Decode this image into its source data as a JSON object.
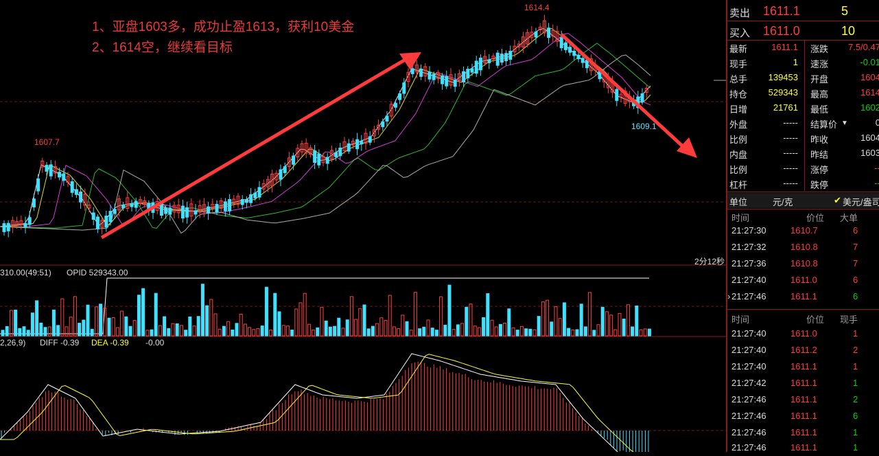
{
  "annotations": {
    "line1": "1、亚盘1603多，成功止盈1613，获利10美金",
    "line2": "2、1614空，继续看目标"
  },
  "chart": {
    "high_label": "1614.4",
    "left_high_label": "1607.7",
    "low_label": "1609.1",
    "countdown": "2分12秒",
    "volume_header": "310.00(49:51)",
    "opid_label": "OPID 529343.00",
    "macd_header": "2,26,9)",
    "diff_label": "DIFF -0.39",
    "dea_label": "DEA -0.39",
    "macd_value": "-0.00"
  },
  "quote": {
    "sell_label": "卖出",
    "sell_price": "1611.1",
    "sell_qty": "5",
    "buy_label": "买入",
    "buy_price": "1611.0",
    "buy_qty": "10"
  },
  "stats": [
    {
      "l1": "最新",
      "v1": "1611.1",
      "l2": "涨跌",
      "v2": "7.5/0.47"
    },
    {
      "l1": "现手",
      "v1": "1",
      "l2": "速涨",
      "v2": "-0.01"
    },
    {
      "l1": "总手",
      "v1": "139453",
      "l2": "开盘",
      "v2": "1604"
    },
    {
      "l1": "持仓",
      "v1": "529343",
      "l2": "最高",
      "v2": "1614"
    },
    {
      "l1": "日增",
      "v1": "21761",
      "l2": "最低",
      "v2": "1602"
    },
    {
      "l1": "外盘",
      "v1": "-----",
      "l2": "结算价",
      "v2": "0"
    },
    {
      "l1": "比例",
      "v1": "-----",
      "l2": "昨收",
      "v2": "1604"
    },
    {
      "l1": "内盘",
      "v1": "-----",
      "l2": "昨结",
      "v2": "1603"
    },
    {
      "l1": "比例",
      "v1": "-----",
      "l2": "涨停",
      "v2": "--"
    },
    {
      "l1": "杠杆",
      "v1": "-----",
      "l2": "跌停",
      "v2": "--"
    }
  ],
  "unit": {
    "label": "单位",
    "value": "元/克",
    "option": "美元/盎司"
  },
  "big_orders": {
    "headers": [
      "时间",
      "价位",
      "大单"
    ],
    "rows": [
      {
        "time": "21:27:30",
        "price": "1610.7",
        "qty": "6"
      },
      {
        "time": "21:27:32",
        "price": "1610.8",
        "qty": "7"
      },
      {
        "time": "21:27:36",
        "price": "1610.8",
        "qty": "7"
      },
      {
        "time": "21:27:40",
        "price": "1611.0",
        "qty": "6"
      },
      {
        "time": "21:27:46",
        "price": "1611.1",
        "qty": "6"
      }
    ]
  },
  "ticks": {
    "headers": [
      "时间",
      "价位",
      "现手"
    ],
    "rows": [
      {
        "time": "21:27:40",
        "price": "1611.0",
        "qty": "1"
      },
      {
        "time": "21:27:40",
        "price": "1611.2",
        "qty": "2"
      },
      {
        "time": "21:27:40",
        "price": "1611.1",
        "qty": "1"
      },
      {
        "time": "21:27:42",
        "price": "1611.1",
        "qty": "1"
      },
      {
        "time": "21:27:46",
        "price": "1611.1",
        "qty": "2"
      },
      {
        "time": "21:27:46",
        "price": "1611.1",
        "qty": "6"
      },
      {
        "time": "21:27:46",
        "price": "1611.1",
        "qty": "1"
      },
      {
        "time": "21:27:46",
        "price": "1611.1",
        "qty": "1"
      }
    ]
  }
}
